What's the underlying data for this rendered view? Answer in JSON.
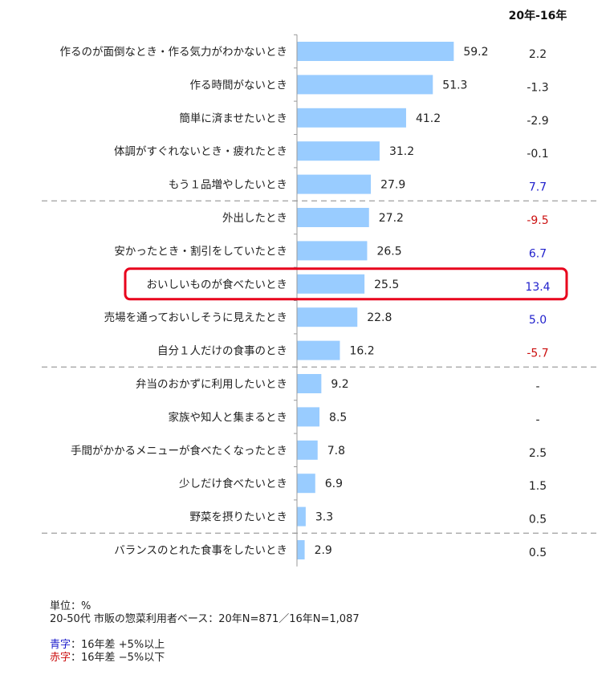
{
  "chart_data": {
    "type": "bar",
    "orientation": "horizontal",
    "categories": [
      "作るのが面倒なとき・作る気力がわかないとき",
      "作る時間がないとき",
      "簡単に済ませたいとき",
      "体調がすぐれないとき・疲れたとき",
      "もう１品増やしたいとき",
      "外出したとき",
      "安かったとき・割引をしていたとき",
      "おいしいものが食べたいとき",
      "売場を通っておいしそうに見えたとき",
      "自分１人だけの食事のとき",
      "弁当のおかずに利用したいとき",
      "家族や知人と集まるとき",
      "手間がかかるメニューが食べたくなったとき",
      "少しだけ食べたいとき",
      "野菜を摂りたいとき",
      "バランスのとれた食事をしたいとき"
    ],
    "values": [
      59.2,
      51.3,
      41.2,
      31.2,
      27.9,
      27.2,
      26.5,
      25.5,
      22.8,
      16.2,
      9.2,
      8.5,
      7.8,
      6.9,
      3.3,
      2.9
    ],
    "value_labels": [
      "59.2",
      "51.3",
      "41.2",
      "31.2",
      "27.9",
      "27.2",
      "26.5",
      "25.5",
      "22.8",
      "16.2",
      "9.2",
      "8.5",
      "7.8",
      "6.9",
      "3.3",
      "2.9"
    ],
    "diff_header": "20年-16年",
    "diffs": [
      "2.2",
      "-1.3",
      "-2.9",
      "-0.1",
      "7.7",
      "-9.5",
      "6.7",
      "13.4",
      "5.0",
      "-5.7",
      "-",
      "-",
      "2.5",
      "1.5",
      "0.5",
      "0.5"
    ],
    "diff_status": [
      "none",
      "none",
      "none",
      "none",
      "up",
      "down",
      "up",
      "up",
      "up",
      "down",
      "none",
      "none",
      "none",
      "none",
      "none",
      "none"
    ],
    "group_separators_after": [
      4,
      9,
      14
    ],
    "highlight_index": 7,
    "xlim": [
      0,
      60
    ]
  },
  "colors": {
    "bar": "#99ccff",
    "up": "#1f1fcc",
    "down": "#cc1111",
    "neutral": "#222222",
    "highlight": "#e8001c",
    "separator": "#a8a8a8"
  },
  "footer": {
    "unit": "単位：%",
    "base": "20-50代  市販の惣菜利用者ベース：20年N=871／16年N=1,087",
    "blue_key": "青字",
    "blue_desc": "：16年差  +5%以上",
    "red_key": "赤字",
    "red_desc": "：16年差  −5%以下"
  }
}
